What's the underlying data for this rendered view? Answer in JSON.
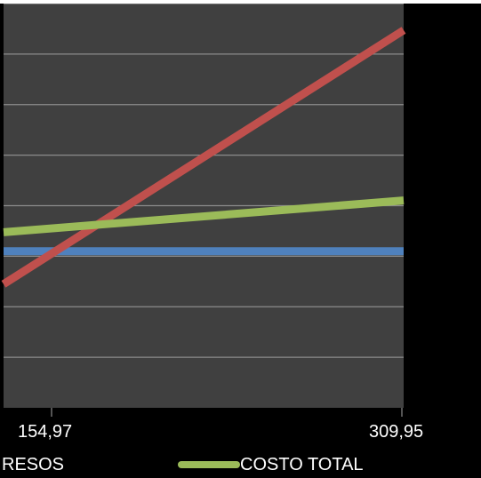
{
  "chart_data": {
    "type": "line",
    "title": "",
    "xlabel": "",
    "ylabel": "",
    "x": [
      "154,97",
      "309,95"
    ],
    "ylim": [
      0,
      8
    ],
    "grid": true,
    "legend_position": "bottom",
    "series": [
      {
        "name": "",
        "color": "#4F81BD",
        "values": [
          3.1,
          3.1
        ]
      },
      {
        "name": "",
        "color": "#C0504D",
        "values": [
          3.05,
          7.45
        ]
      },
      {
        "name": "COSTO TOTAL",
        "color": "#9BBB59",
        "values": [
          3.55,
          4.1
        ]
      }
    ],
    "legend_labels": [
      "RESOS",
      "COSTO TOTAL"
    ],
    "background": "#404040",
    "grid_color": "#8C8C8C"
  }
}
